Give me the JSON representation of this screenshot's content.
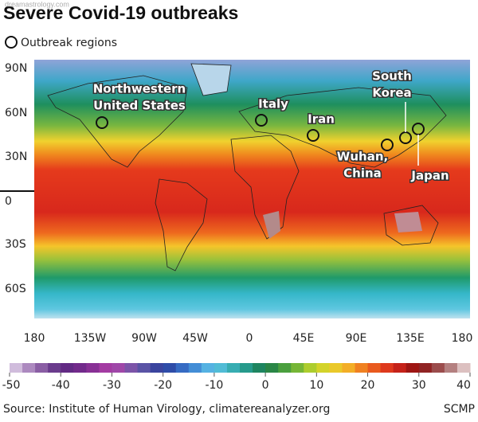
{
  "header": {
    "title": "Severe Covid-19 outbreaks",
    "watermark": "dreamastrology.com",
    "legend": "Outbreak regions"
  },
  "map": {
    "latitude_labels": [
      "90N",
      "60N",
      "30N",
      "0",
      "30S",
      "60S"
    ],
    "longitude_labels": [
      "180",
      "135W",
      "90W",
      "45W",
      "0",
      "45E",
      "90E",
      "135E",
      "180"
    ],
    "regions": [
      {
        "lines": [
          "Northwestern",
          "United States"
        ]
      },
      {
        "lines": [
          "Italy"
        ]
      },
      {
        "lines": [
          "Iran"
        ]
      },
      {
        "lines": [
          "Wuhan,",
          "China"
        ]
      },
      {
        "lines": [
          "South",
          "Korea"
        ]
      },
      {
        "lines": [
          "Japan"
        ]
      }
    ]
  },
  "colorbar": {
    "range": [
      -50,
      40
    ],
    "ticks": [
      -50,
      -40,
      -30,
      -20,
      -10,
      0,
      10,
      20,
      30,
      40
    ]
  },
  "footer": {
    "source": "Source: Institute of Human Virology, climatereanalyzer.org",
    "credit": "SCMP"
  }
}
